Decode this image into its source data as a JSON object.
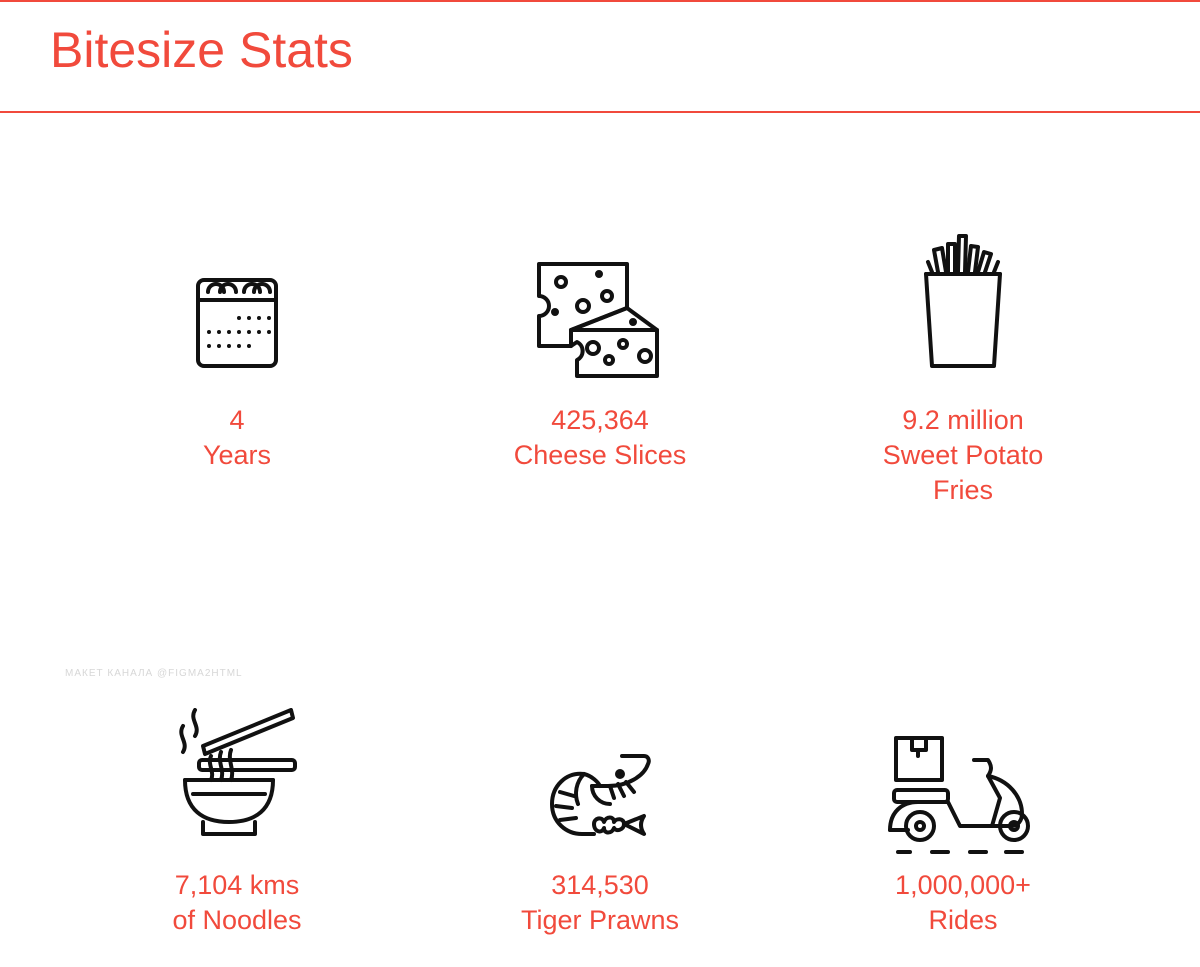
{
  "header": {
    "title": "Bitesize Stats"
  },
  "watermark": "МАКЕТ КАНАЛА @FIGMA2HTML",
  "colors": {
    "accent": "#f14a3c",
    "icon": "#111111",
    "watermark": "#d7d7d7"
  },
  "stats": [
    {
      "icon": "calendar-icon",
      "value": "4",
      "label": "Years"
    },
    {
      "icon": "cheese-icon",
      "value": "425,364",
      "label": "Cheese Slices"
    },
    {
      "icon": "fries-icon",
      "value": "9.2 million",
      "label": "Sweet Potato Fries"
    },
    {
      "icon": "noodle-bowl-icon",
      "value": "7,104 kms",
      "label": "of Noodles"
    },
    {
      "icon": "prawn-icon",
      "value": "314,530",
      "label": "Tiger Prawns"
    },
    {
      "icon": "delivery-scooter-icon",
      "value": "1,000,000+",
      "label": "Rides"
    }
  ]
}
